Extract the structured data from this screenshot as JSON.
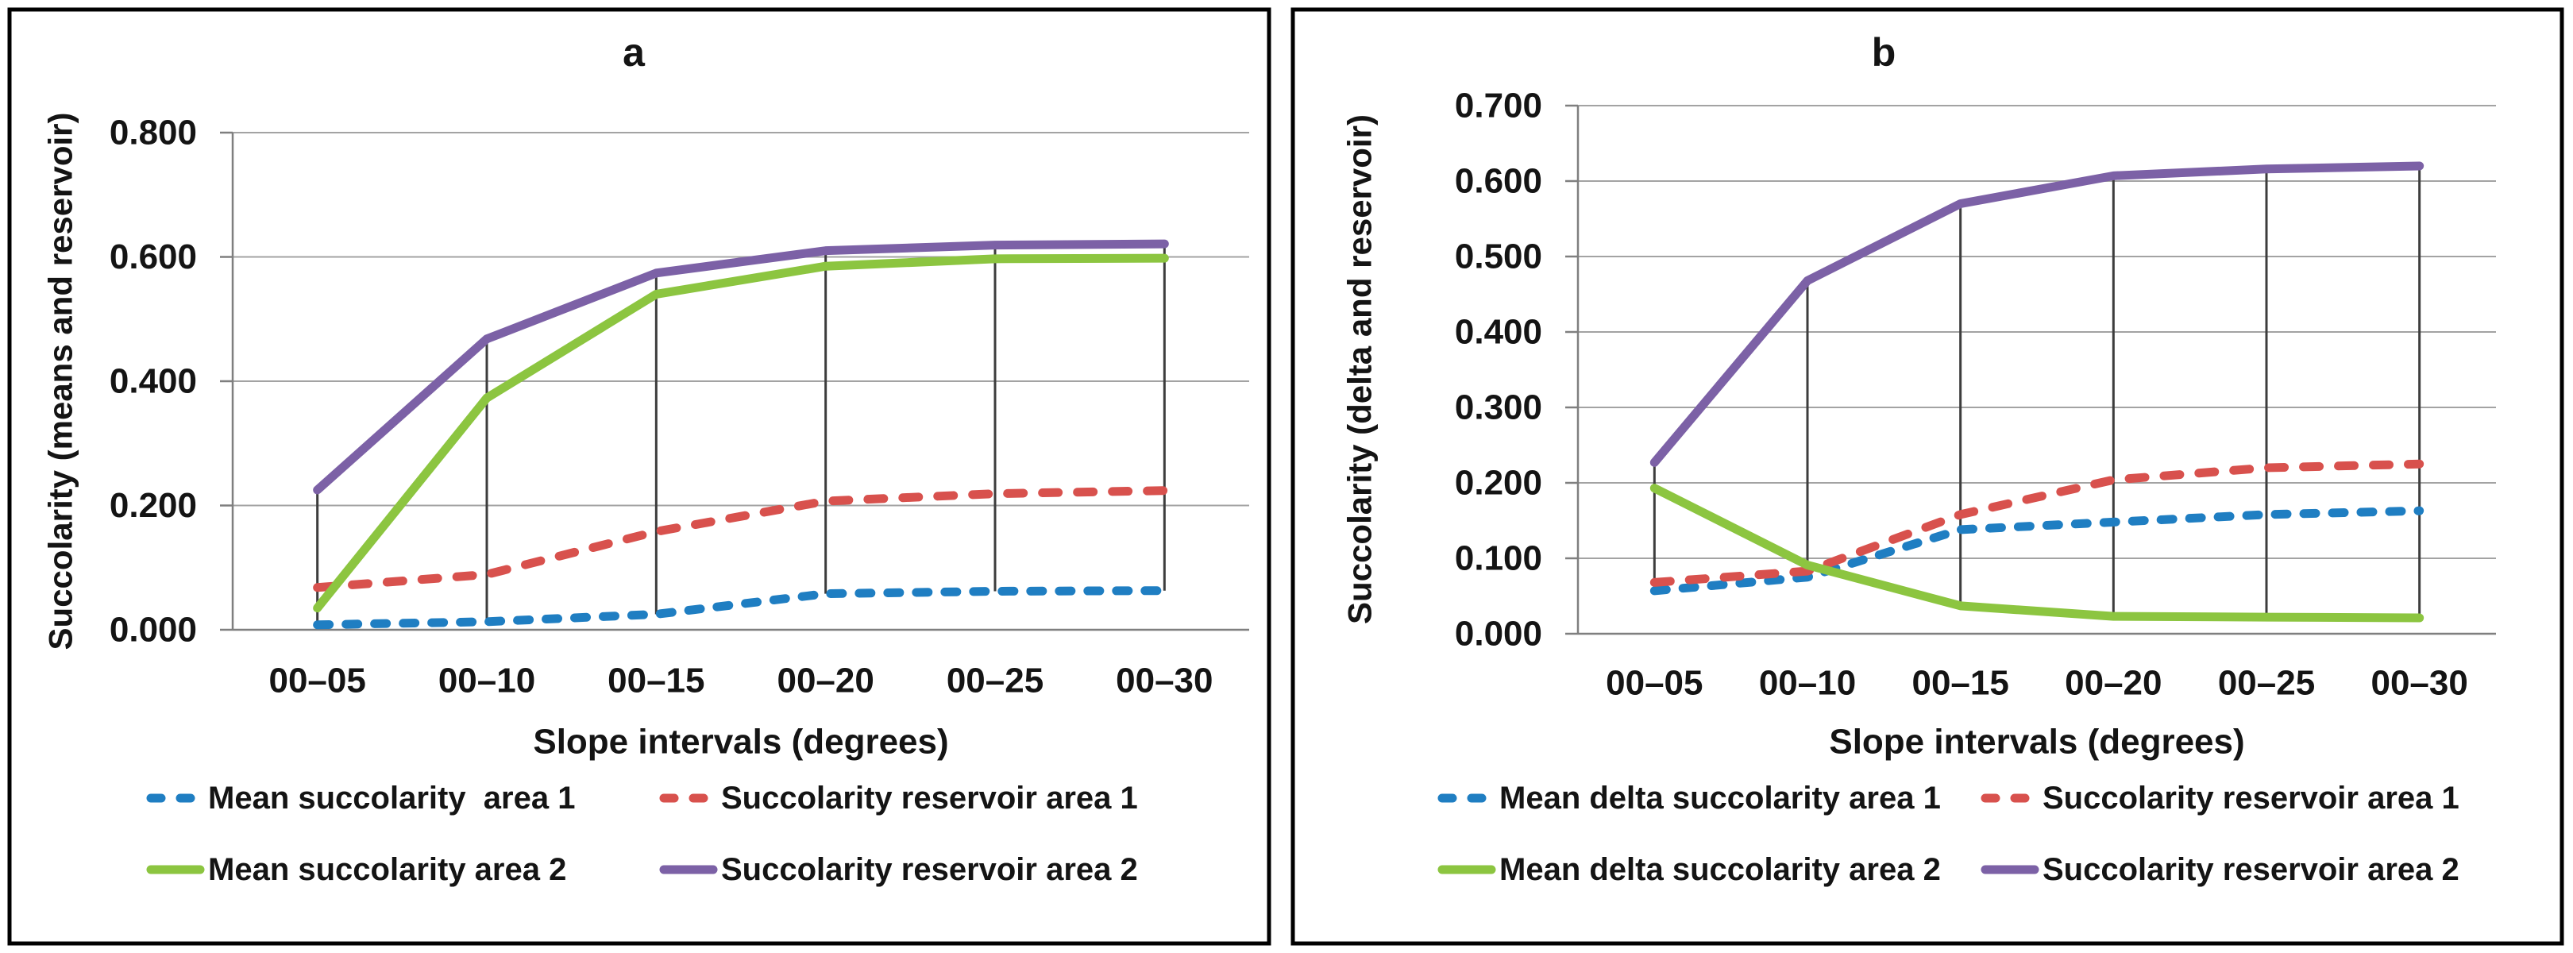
{
  "chart_data": [
    {
      "type": "line",
      "title": "a",
      "xlabel": "Slope intervals (degrees)",
      "ylabel": "Succolarity (means and reservoir)",
      "categories": [
        "00–05",
        "00–10",
        "00–15",
        "00–20",
        "00–25",
        "00–30"
      ],
      "ylim": [
        0,
        0.8
      ],
      "ytick_step": 0.2,
      "ytick_labels": [
        "0.000",
        "0.200",
        "0.400",
        "0.600",
        "0.800"
      ],
      "grid": true,
      "high_low_lines": true,
      "legend_position": "bottom",
      "series": [
        {
          "name": "Mean succolarity  area 1",
          "color": "#1F7EC2",
          "style": "dashed",
          "values": [
            0.008,
            0.013,
            0.025,
            0.058,
            0.062,
            0.063
          ]
        },
        {
          "name": "Succolarity reservoir area 1",
          "color": "#D8514D",
          "style": "dashed",
          "values": [
            0.068,
            0.089,
            0.158,
            0.207,
            0.219,
            0.224
          ]
        },
        {
          "name": "Mean succolarity area 2",
          "color": "#8CC540",
          "style": "solid",
          "values": [
            0.035,
            0.373,
            0.54,
            0.585,
            0.597,
            0.598
          ]
        },
        {
          "name": "Succolarity reservoir area 2",
          "color": "#7C61A6",
          "style": "solid",
          "values": [
            0.225,
            0.468,
            0.574,
            0.61,
            0.619,
            0.621
          ]
        }
      ]
    },
    {
      "type": "line",
      "title": "b",
      "xlabel": "Slope intervals (degrees)",
      "ylabel": "Succolarity (delta and reservoir)",
      "categories": [
        "00–05",
        "00–10",
        "00–15",
        "00–20",
        "00–25",
        "00–30"
      ],
      "ylim": [
        0,
        0.7
      ],
      "ytick_step": 0.1,
      "ytick_labels": [
        "0.000",
        "0.100",
        "0.200",
        "0.300",
        "0.400",
        "0.500",
        "0.600",
        "0.700"
      ],
      "grid": true,
      "high_low_lines": true,
      "legend_position": "bottom",
      "series": [
        {
          "name": "Mean delta succolarity area 1",
          "color": "#1F7EC2",
          "style": "dashed",
          "values": [
            0.057,
            0.075,
            0.138,
            0.148,
            0.158,
            0.163
          ]
        },
        {
          "name": "Succolarity reservoir area 1",
          "color": "#D8514D",
          "style": "dashed",
          "values": [
            0.068,
            0.083,
            0.158,
            0.204,
            0.22,
            0.225
          ]
        },
        {
          "name": "Mean delta succolarity area 2",
          "color": "#8CC540",
          "style": "solid",
          "values": [
            0.193,
            0.091,
            0.037,
            0.023,
            0.022,
            0.021
          ]
        },
        {
          "name": "Succolarity reservoir area 2",
          "color": "#7C61A6",
          "style": "solid",
          "values": [
            0.227,
            0.468,
            0.57,
            0.607,
            0.616,
            0.62
          ]
        }
      ]
    }
  ],
  "style_tokens": {
    "series_blue": "#1F7EC2",
    "series_red": "#D8514D",
    "series_green": "#8CC540",
    "series_purple": "#7C61A6",
    "gridline_color": "#A3A3A3",
    "axis_color": "#7F7F7F",
    "high_low_line_color": "#3D3D3D",
    "panel_border_color": "#000000",
    "text_color": "#141414",
    "background": "#FFFFFF"
  }
}
